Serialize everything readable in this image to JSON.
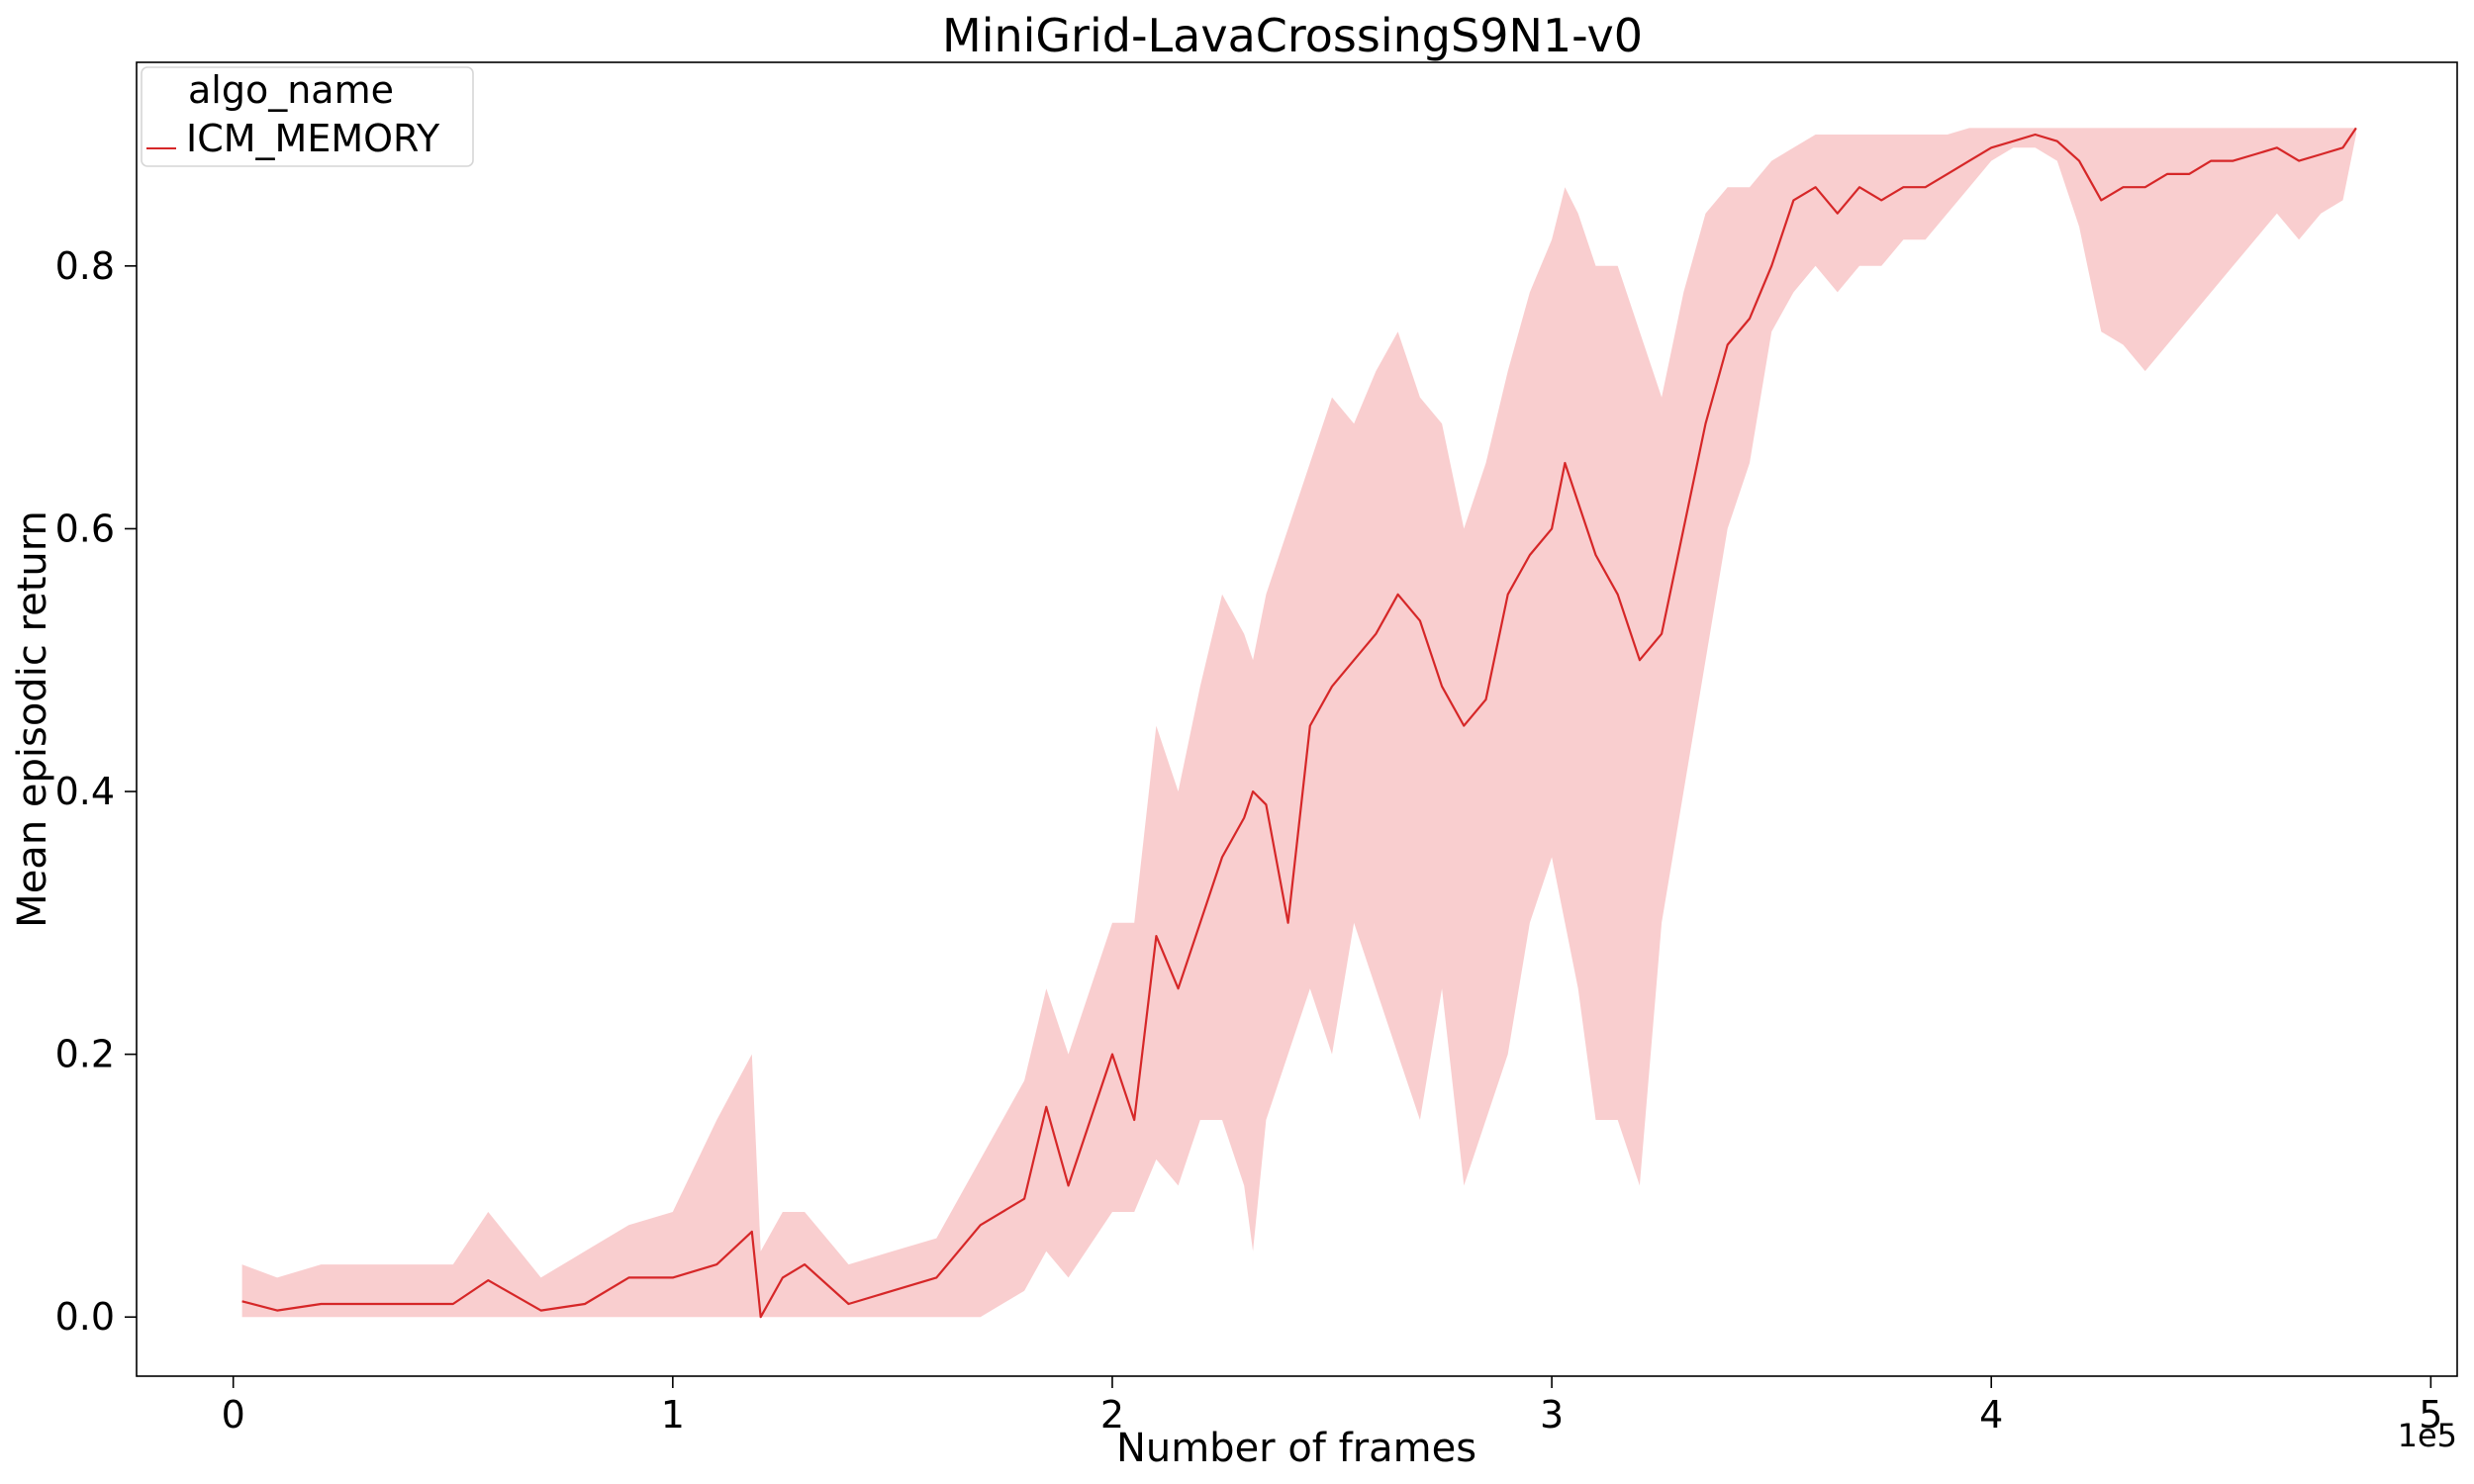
{
  "chart_data": {
    "type": "line",
    "title": "MiniGrid-LavaCrossingS9N1-v0",
    "xlabel": "Number of frames",
    "ylabel": "Mean episodic return",
    "x_offset_label": "1e5",
    "xlim": [
      -0.22,
      5.06
    ],
    "ylim": [
      -0.045,
      0.955
    ],
    "x_ticks": [
      0,
      1,
      2,
      3,
      4,
      5
    ],
    "x_tick_labels": [
      "0",
      "1",
      "2",
      "3",
      "4",
      "5"
    ],
    "y_ticks": [
      0.0,
      0.2,
      0.4,
      0.6,
      0.8
    ],
    "y_tick_labels": [
      "0.0",
      "0.2",
      "0.4",
      "0.6",
      "0.8"
    ],
    "grid": false,
    "legend": {
      "title": "algo_name",
      "placement": "top-left",
      "entries": [
        "ICM_MEMORY"
      ]
    },
    "series": [
      {
        "name": "ICM_MEMORY",
        "color": "#d62728",
        "band_color": "#f4a6a8",
        "x": [
          0.02,
          0.1,
          0.2,
          0.3,
          0.4,
          0.5,
          0.58,
          0.7,
          0.8,
          0.9,
          1.0,
          1.1,
          1.18,
          1.2,
          1.25,
          1.3,
          1.4,
          1.5,
          1.6,
          1.7,
          1.8,
          1.85,
          1.9,
          2.0,
          2.05,
          2.1,
          2.15,
          2.2,
          2.25,
          2.3,
          2.32,
          2.35,
          2.4,
          2.45,
          2.5,
          2.55,
          2.6,
          2.65,
          2.7,
          2.75,
          2.8,
          2.85,
          2.9,
          2.95,
          3.0,
          3.03,
          3.06,
          3.1,
          3.15,
          3.2,
          3.25,
          3.3,
          3.35,
          3.4,
          3.45,
          3.5,
          3.55,
          3.6,
          3.65,
          3.7,
          3.75,
          3.8,
          3.85,
          3.9,
          3.95,
          4.0,
          4.05,
          4.1,
          4.15,
          4.2,
          4.25,
          4.3,
          4.35,
          4.4,
          4.45,
          4.5,
          4.55,
          4.6,
          4.65,
          4.7,
          4.75,
          4.8,
          4.83
        ],
        "y": [
          0.012,
          0.005,
          0.01,
          0.01,
          0.01,
          0.01,
          0.028,
          0.005,
          0.01,
          0.03,
          0.03,
          0.04,
          0.065,
          0.0,
          0.03,
          0.04,
          0.01,
          0.02,
          0.03,
          0.07,
          0.09,
          0.16,
          0.1,
          0.2,
          0.15,
          0.29,
          0.25,
          0.3,
          0.35,
          0.38,
          0.4,
          0.39,
          0.3,
          0.45,
          0.48,
          0.5,
          0.52,
          0.55,
          0.53,
          0.48,
          0.45,
          0.47,
          0.55,
          0.58,
          0.6,
          0.65,
          0.62,
          0.58,
          0.55,
          0.5,
          0.52,
          0.6,
          0.68,
          0.74,
          0.76,
          0.8,
          0.85,
          0.86,
          0.84,
          0.86,
          0.85,
          0.86,
          0.86,
          0.87,
          0.88,
          0.89,
          0.895,
          0.9,
          0.895,
          0.88,
          0.85,
          0.86,
          0.86,
          0.87,
          0.87,
          0.88,
          0.88,
          0.885,
          0.89,
          0.88,
          0.885,
          0.89,
          0.905
        ],
        "lower": [
          0.0,
          0.0,
          0.0,
          0.0,
          0.0,
          0.0,
          0.0,
          0.0,
          0.0,
          0.0,
          0.0,
          0.0,
          0.0,
          0.0,
          0.0,
          0.0,
          0.0,
          0.0,
          0.0,
          0.0,
          0.02,
          0.05,
          0.03,
          0.08,
          0.08,
          0.12,
          0.1,
          0.15,
          0.15,
          0.1,
          0.05,
          0.15,
          0.2,
          0.25,
          0.2,
          0.3,
          0.25,
          0.2,
          0.15,
          0.25,
          0.1,
          0.15,
          0.2,
          0.3,
          0.35,
          0.3,
          0.25,
          0.15,
          0.15,
          0.1,
          0.3,
          0.4,
          0.5,
          0.6,
          0.65,
          0.75,
          0.78,
          0.8,
          0.78,
          0.8,
          0.8,
          0.82,
          0.82,
          0.84,
          0.86,
          0.88,
          0.89,
          0.89,
          0.88,
          0.83,
          0.75,
          0.74,
          0.72,
          0.74,
          0.76,
          0.78,
          0.8,
          0.82,
          0.84,
          0.82,
          0.84,
          0.85,
          0.9
        ],
        "upper": [
          0.04,
          0.03,
          0.04,
          0.04,
          0.04,
          0.04,
          0.08,
          0.03,
          0.05,
          0.07,
          0.08,
          0.15,
          0.2,
          0.05,
          0.08,
          0.08,
          0.04,
          0.05,
          0.06,
          0.12,
          0.18,
          0.25,
          0.2,
          0.3,
          0.3,
          0.45,
          0.4,
          0.48,
          0.55,
          0.52,
          0.5,
          0.55,
          0.6,
          0.65,
          0.7,
          0.68,
          0.72,
          0.75,
          0.7,
          0.68,
          0.6,
          0.65,
          0.72,
          0.78,
          0.82,
          0.86,
          0.84,
          0.8,
          0.8,
          0.75,
          0.7,
          0.78,
          0.84,
          0.86,
          0.86,
          0.88,
          0.89,
          0.9,
          0.9,
          0.9,
          0.9,
          0.9,
          0.9,
          0.9,
          0.905,
          0.905,
          0.905,
          0.905,
          0.905,
          0.905,
          0.905,
          0.905,
          0.905,
          0.905,
          0.905,
          0.905,
          0.905,
          0.905,
          0.905,
          0.905,
          0.905,
          0.905,
          0.905
        ]
      }
    ]
  }
}
